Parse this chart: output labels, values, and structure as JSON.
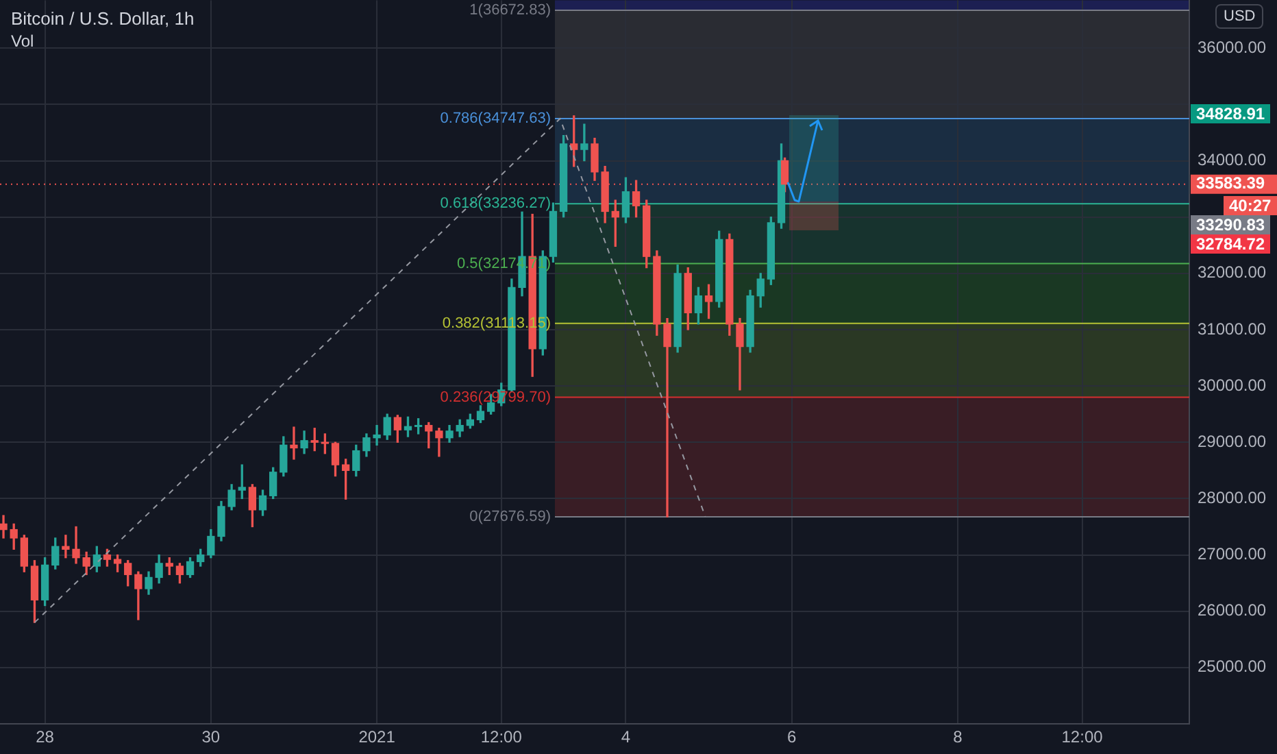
{
  "chart_data": {
    "type": "candlestick",
    "title": "Bitcoin / U.S. Dollar, 1h",
    "ylabel": "USD",
    "x": [
      "2020-12-27T12:00",
      "2020-12-27T15:00",
      "2020-12-27T18:00",
      "2020-12-27T21:00",
      "2020-12-28T00:00",
      "2020-12-28T03:00",
      "2020-12-28T06:00",
      "2020-12-28T09:00",
      "2020-12-28T12:00",
      "2020-12-28T15:00",
      "2020-12-28T18:00",
      "2020-12-28T21:00",
      "2020-12-29T00:00",
      "2020-12-29T03:00",
      "2020-12-29T06:00",
      "2020-12-29T09:00",
      "2020-12-29T12:00",
      "2020-12-29T15:00",
      "2020-12-29T18:00",
      "2020-12-29T21:00",
      "2020-12-30T00:00",
      "2020-12-30T03:00",
      "2020-12-30T06:00",
      "2020-12-30T09:00",
      "2020-12-30T12:00",
      "2020-12-30T15:00",
      "2020-12-30T18:00",
      "2020-12-30T21:00",
      "2020-12-31T00:00",
      "2020-12-31T03:00",
      "2020-12-31T06:00",
      "2020-12-31T09:00",
      "2020-12-31T12:00",
      "2020-12-31T15:00",
      "2020-12-31T18:00",
      "2020-12-31T21:00",
      "2021-01-01T00:00",
      "2021-01-01T03:00",
      "2021-01-01T06:00",
      "2021-01-01T09:00",
      "2021-01-01T12:00",
      "2021-01-01T15:00",
      "2021-01-01T18:00",
      "2021-01-01T21:00",
      "2021-01-02T00:00",
      "2021-01-02T03:00",
      "2021-01-02T06:00",
      "2021-01-02T09:00",
      "2021-01-02T12:00",
      "2021-01-02T15:00",
      "2021-01-02T18:00",
      "2021-01-02T21:00",
      "2021-01-03T00:00",
      "2021-01-03T03:00",
      "2021-01-03T06:00",
      "2021-01-03T09:00",
      "2021-01-03T12:00",
      "2021-01-03T15:00",
      "2021-01-03T18:00",
      "2021-01-03T21:00",
      "2021-01-04T00:00",
      "2021-01-04T03:00",
      "2021-01-04T06:00",
      "2021-01-04T09:00",
      "2021-01-04T12:00",
      "2021-01-04T15:00",
      "2021-01-04T18:00",
      "2021-01-04T21:00",
      "2021-01-05T00:00",
      "2021-01-05T03:00",
      "2021-01-05T06:00",
      "2021-01-05T09:00",
      "2021-01-05T12:00",
      "2021-01-05T15:00",
      "2021-01-05T18:00",
      "2021-01-05T21:00",
      "2021-01-05T22:00"
    ],
    "ohlc": [
      [
        27550,
        27700,
        27300,
        27450
      ],
      [
        27450,
        27550,
        27100,
        27300
      ],
      [
        27300,
        27350,
        26700,
        26800
      ],
      [
        26800,
        26900,
        25800,
        26200
      ],
      [
        26200,
        26950,
        26100,
        26820
      ],
      [
        26820,
        27300,
        26750,
        27150
      ],
      [
        27150,
        27350,
        26950,
        27100
      ],
      [
        27100,
        27500,
        26850,
        26950
      ],
      [
        26950,
        27050,
        26650,
        26800
      ],
      [
        26800,
        27150,
        26700,
        27000
      ],
      [
        27000,
        27100,
        26800,
        26920
      ],
      [
        26920,
        27000,
        26700,
        26850
      ],
      [
        26850,
        26900,
        26450,
        26650
      ],
      [
        26650,
        26700,
        25850,
        26400
      ],
      [
        26400,
        26700,
        26300,
        26600
      ],
      [
        26600,
        27000,
        26500,
        26850
      ],
      [
        26850,
        26950,
        26650,
        26800
      ],
      [
        26800,
        26850,
        26500,
        26650
      ],
      [
        26650,
        26950,
        26600,
        26880
      ],
      [
        26880,
        27100,
        26800,
        27000
      ],
      [
        27000,
        27450,
        26950,
        27330
      ],
      [
        27330,
        27950,
        27250,
        27860
      ],
      [
        27860,
        28250,
        27800,
        28150
      ],
      [
        28150,
        28600,
        28000,
        28200
      ],
      [
        28200,
        28250,
        27500,
        27800
      ],
      [
        27800,
        28150,
        27700,
        28050
      ],
      [
        28050,
        28550,
        28000,
        28470
      ],
      [
        28470,
        29100,
        28400,
        28950
      ],
      [
        28950,
        29270,
        28700,
        28900
      ],
      [
        28900,
        29200,
        28800,
        29030
      ],
      [
        29030,
        29250,
        28850,
        29000
      ],
      [
        29000,
        29150,
        28800,
        28980
      ],
      [
        28980,
        29000,
        28400,
        28600
      ],
      [
        28600,
        28700,
        27990,
        28500
      ],
      [
        28500,
        28950,
        28400,
        28850
      ],
      [
        28850,
        29150,
        28750,
        29080
      ],
      [
        29080,
        29300,
        28950,
        29130
      ],
      [
        29130,
        29500,
        29050,
        29440
      ],
      [
        29440,
        29480,
        29000,
        29220
      ],
      [
        29220,
        29450,
        29100,
        29280
      ],
      [
        29280,
        29420,
        29150,
        29300
      ],
      [
        29300,
        29350,
        28900,
        29200
      ],
      [
        29200,
        29250,
        28750,
        29080
      ],
      [
        29080,
        29300,
        29000,
        29200
      ],
      [
        29200,
        29400,
        29100,
        29300
      ],
      [
        29300,
        29500,
        29250,
        29400
      ],
      [
        29400,
        29650,
        29350,
        29550
      ],
      [
        29550,
        29850,
        29500,
        29700
      ],
      [
        29700,
        30050,
        29650,
        29930
      ],
      [
        29930,
        31900,
        29900,
        31750
      ],
      [
        31750,
        33090,
        31600,
        32300
      ],
      [
        32300,
        33050,
        30170,
        30660
      ],
      [
        30660,
        32400,
        30550,
        32300
      ],
      [
        32300,
        33250,
        32200,
        33100
      ],
      [
        33100,
        34450,
        33000,
        34300
      ],
      [
        34300,
        34800,
        33900,
        34200
      ],
      [
        34200,
        34650,
        34000,
        34300
      ],
      [
        34300,
        34400,
        33650,
        33800
      ],
      [
        33800,
        33900,
        32900,
        33100
      ],
      [
        33100,
        33300,
        32480,
        33000
      ],
      [
        33000,
        33700,
        32900,
        33450
      ],
      [
        33450,
        33650,
        33000,
        33200
      ],
      [
        33200,
        33300,
        32100,
        32300
      ],
      [
        32300,
        32400,
        30900,
        31100
      ],
      [
        31100,
        31200,
        27676.59,
        30700
      ],
      [
        30700,
        32150,
        30600,
        32000
      ],
      [
        32000,
        32100,
        31000,
        31300
      ],
      [
        31300,
        31750,
        31100,
        31600
      ],
      [
        31600,
        31800,
        31200,
        31500
      ],
      [
        31500,
        32750,
        31400,
        32600
      ],
      [
        32600,
        32700,
        30900,
        31100
      ],
      [
        31100,
        31200,
        29930,
        30700
      ],
      [
        30700,
        31700,
        30600,
        31600
      ],
      [
        31600,
        32000,
        31400,
        31900
      ],
      [
        31900,
        33000,
        31800,
        32900
      ],
      [
        32900,
        34300,
        32800,
        34000
      ],
      [
        34000,
        34050,
        33450,
        33583.39
      ]
    ],
    "colors": [
      "#ef5350",
      "#ef5350",
      "#ef5350",
      "#ef5350",
      "#26a69a",
      "#26a69a",
      "#ef5350",
      "#ef5350",
      "#ef5350",
      "#26a69a",
      "#ef5350",
      "#ef5350",
      "#ef5350",
      "#ef5350",
      "#26a69a",
      "#26a69a",
      "#ef5350",
      "#ef5350",
      "#26a69a",
      "#26a69a",
      "#26a69a",
      "#26a69a",
      "#26a69a",
      "#26a69a",
      "#ef5350",
      "#26a69a",
      "#26a69a",
      "#26a69a",
      "#ef5350",
      "#26a69a",
      "#ef5350",
      "#ef5350",
      "#ef5350",
      "#ef5350",
      "#26a69a",
      "#26a69a",
      "#26a69a",
      "#26a69a",
      "#ef5350",
      "#26a69a",
      "#26a69a",
      "#ef5350",
      "#ef5350",
      "#26a69a",
      "#26a69a",
      "#26a69a",
      "#26a69a",
      "#26a69a",
      "#26a69a",
      "#26a69a",
      "#26a69a",
      "#ef5350",
      "#26a69a",
      "#26a69a",
      "#26a69a",
      "#ef5350",
      "#26a69a",
      "#ef5350",
      "#ef5350",
      "#ef5350",
      "#26a69a",
      "#ef5350",
      "#ef5350",
      "#ef5350",
      "#ef5350",
      "#26a69a",
      "#ef5350",
      "#26a69a",
      "#ef5350",
      "#26a69a",
      "#ef5350",
      "#ef5350",
      "#26a69a",
      "#26a69a",
      "#26a69a",
      "#26a69a",
      "#ef5350"
    ],
    "xlim": [
      "2020-12-27T11:00",
      "2021-01-10T19:00"
    ],
    "xticks": [
      {
        "value": "2020-12-28",
        "label": "28"
      },
      {
        "value": "2020-12-30",
        "label": "30"
      },
      {
        "value": "2021-01-01",
        "label": "2021"
      },
      {
        "value": "2021-01-02T12:00",
        "label": "12:00"
      },
      {
        "value": "2021-01-04",
        "label": "4"
      },
      {
        "value": "2021-01-06",
        "label": "6"
      },
      {
        "value": "2021-01-08",
        "label": "8"
      },
      {
        "value": "2021-01-09T12:00",
        "label": "12:00"
      }
    ],
    "ylim": [
      24000,
      36850
    ],
    "yticks": [
      {
        "value": 25000,
        "label": "25000.00"
      },
      {
        "value": 26000,
        "label": "26000.00"
      },
      {
        "value": 27000,
        "label": "27000.00"
      },
      {
        "value": 28000,
        "label": "28000.00"
      },
      {
        "value": 29000,
        "label": "29000.00"
      },
      {
        "value": 30000,
        "label": "30000.00"
      },
      {
        "value": 31000,
        "label": "31000.00"
      },
      {
        "value": 32000,
        "label": "32000.00"
      },
      {
        "value": 33000,
        "label": null
      },
      {
        "value": 34000,
        "label": "34000.00"
      },
      {
        "value": 35000,
        "label": null
      },
      {
        "value": 36000,
        "label": "36000.00"
      }
    ],
    "grid": true,
    "bands": [
      {
        "axis": "y",
        "from": 36672.83,
        "to": 36850,
        "color": "#1c1f52"
      },
      {
        "axis": "y",
        "from": 34747.63,
        "to": 36672.83,
        "color": "#2a2c33"
      },
      {
        "axis": "y",
        "from": 33236.27,
        "to": 34747.63,
        "color": "#1a2d42"
      },
      {
        "axis": "y",
        "from": 32174.71,
        "to": 33236.27,
        "color": "#17332e"
      },
      {
        "axis": "y",
        "from": 31113.15,
        "to": 32174.71,
        "color": "#1a3823"
      },
      {
        "axis": "y",
        "from": 29799.7,
        "to": 31113.15,
        "color": "#2a3824"
      },
      {
        "axis": "y",
        "from": 27676.59,
        "to": 29799.7,
        "color": "#391d25"
      }
    ],
    "ref_lines": [
      {
        "axis": "y",
        "value": 36672.83,
        "label": "1(36672.83)",
        "color": "#787b86"
      },
      {
        "axis": "y",
        "value": 34747.63,
        "label": "0.786(34747.63)",
        "color": "#4a90d9"
      },
      {
        "axis": "y",
        "value": 33236.27,
        "label": "0.618(33236.27)",
        "color": "#2bb594"
      },
      {
        "axis": "y",
        "value": 32174.71,
        "label": "0.5(32174.71)",
        "color": "#4caf50"
      },
      {
        "axis": "y",
        "value": 31113.15,
        "label": "0.382(31113.15)",
        "color": "#b5c234"
      },
      {
        "axis": "y",
        "value": 29799.7,
        "label": "0.236(29799.70)",
        "color": "#d32f2f"
      },
      {
        "axis": "y",
        "value": 27676.59,
        "label": "0(27676.59)",
        "color": "#787b86"
      },
      {
        "axis": "y",
        "value": 33583.39,
        "label": "33583.39",
        "color": "#ef5350",
        "line_style": "dotted"
      }
    ],
    "series": [
      {
        "type": "line",
        "x": [
          "2020-12-27T21:00",
          "2021-01-03T05:00",
          "2021-01-04T23:00"
        ],
        "values": [
          25800,
          34750,
          27680
        ],
        "color": "#9598a1",
        "line_style": "dashed"
      }
    ],
    "annotations": [
      "Vol",
      "34828.91",
      "40:27",
      "33290.83",
      "32784.72"
    ]
  }
}
